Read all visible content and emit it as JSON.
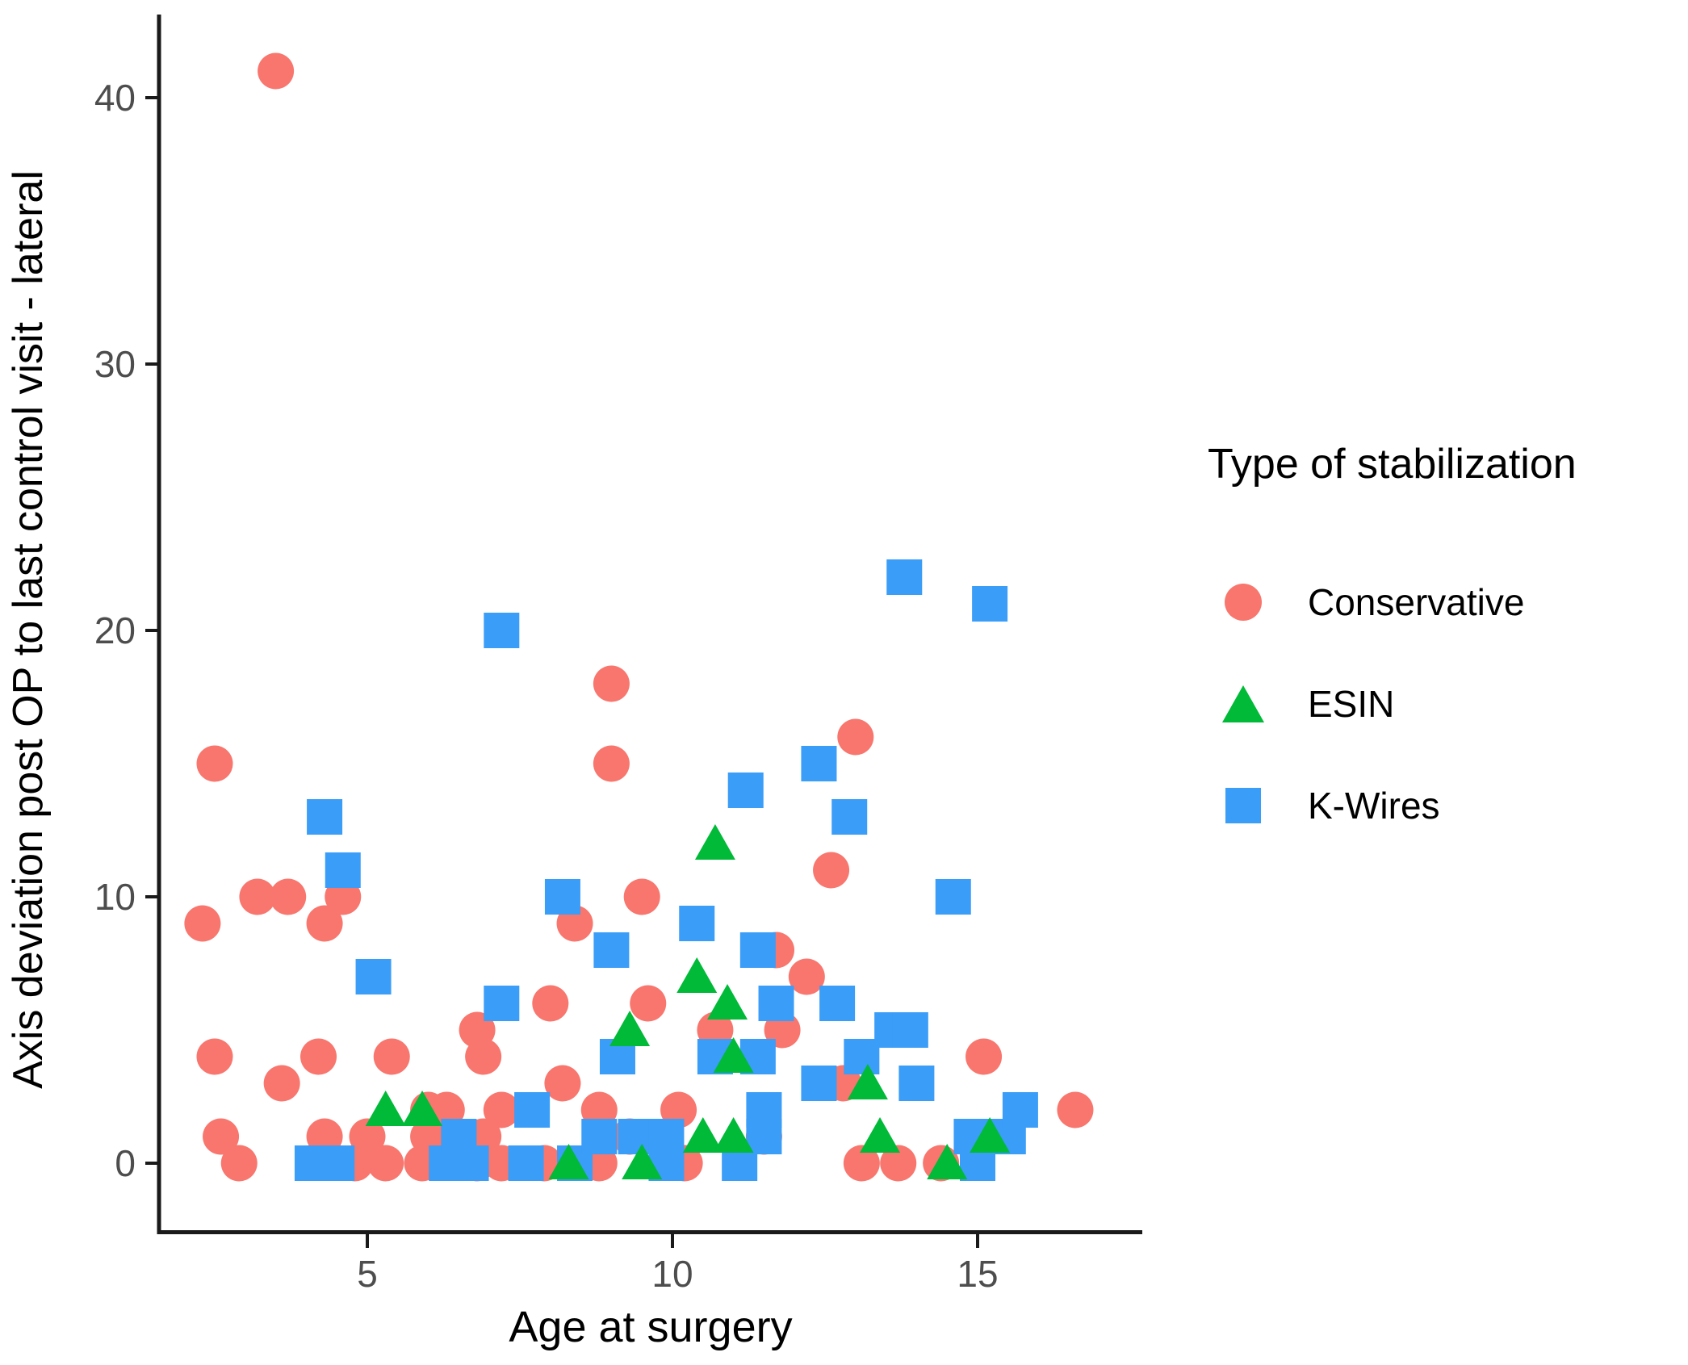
{
  "chart_data": {
    "type": "scatter",
    "title": "",
    "xlabel": "Age at surgery",
    "ylabel": "Axis deviation post OP to last control visit - lateral",
    "xlim": [
      1.8,
      17.6
    ],
    "ylim": [
      -2,
      43.5
    ],
    "x_ticks": [
      5,
      10,
      15
    ],
    "y_ticks": [
      0,
      10,
      20,
      30,
      40
    ],
    "grid": "off",
    "legend_title": "Type of stabilization",
    "legend_position": "right",
    "series": [
      {
        "name": "Conservative",
        "marker": "circle",
        "color": "#F8766D",
        "points": [
          [
            3.5,
            41
          ],
          [
            2.5,
            15
          ],
          [
            2.3,
            9
          ],
          [
            3.2,
            10
          ],
          [
            3.7,
            10
          ],
          [
            4.3,
            9
          ],
          [
            4.6,
            10
          ],
          [
            2.5,
            4
          ],
          [
            4.2,
            4
          ],
          [
            5.4,
            4
          ],
          [
            3.6,
            3
          ],
          [
            2.6,
            1
          ],
          [
            2.9,
            0
          ],
          [
            4.3,
            1
          ],
          [
            5.0,
            1
          ],
          [
            4.8,
            0
          ],
          [
            5.3,
            0
          ],
          [
            5.9,
            0
          ],
          [
            6.0,
            1
          ],
          [
            6.0,
            2
          ],
          [
            6.3,
            2
          ],
          [
            6.8,
            5
          ],
          [
            6.9,
            4
          ],
          [
            6.9,
            1
          ],
          [
            6.8,
            0
          ],
          [
            7.2,
            0
          ],
          [
            7.2,
            2
          ],
          [
            7.9,
            0
          ],
          [
            8.2,
            3
          ],
          [
            8.8,
            2
          ],
          [
            8.8,
            0
          ],
          [
            8.0,
            6
          ],
          [
            8.4,
            9
          ],
          [
            9.0,
            18
          ],
          [
            9.0,
            15
          ],
          [
            9.5,
            10
          ],
          [
            9.3,
            1
          ],
          [
            9.6,
            6
          ],
          [
            10.1,
            2
          ],
          [
            10.2,
            0
          ],
          [
            10.7,
            5
          ],
          [
            11.7,
            8
          ],
          [
            11.8,
            5
          ],
          [
            11.5,
            1
          ],
          [
            12.2,
            7
          ],
          [
            12.6,
            11
          ],
          [
            12.8,
            3
          ],
          [
            13.0,
            16
          ],
          [
            13.1,
            0
          ],
          [
            13.7,
            0
          ],
          [
            14.4,
            0
          ],
          [
            15.1,
            4
          ],
          [
            16.6,
            2
          ]
        ]
      },
      {
        "name": "ESIN",
        "marker": "triangle",
        "color": "#00BA38",
        "points": [
          [
            5.3,
            2
          ],
          [
            5.9,
            2
          ],
          [
            8.3,
            0
          ],
          [
            9.3,
            5
          ],
          [
            9.5,
            0
          ],
          [
            10.4,
            7
          ],
          [
            10.7,
            12
          ],
          [
            10.5,
            1
          ],
          [
            10.9,
            6
          ],
          [
            11.0,
            4
          ],
          [
            11.0,
            1
          ],
          [
            13.2,
            3
          ],
          [
            13.4,
            1
          ],
          [
            14.5,
            0
          ],
          [
            15.2,
            1
          ]
        ]
      },
      {
        "name": "K-Wires",
        "marker": "square",
        "color": "#3A9DF8",
        "points": [
          [
            4.1,
            0
          ],
          [
            4.5,
            0
          ],
          [
            4.3,
            13
          ],
          [
            4.6,
            11
          ],
          [
            5.1,
            7
          ],
          [
            6.3,
            0
          ],
          [
            6.5,
            1
          ],
          [
            6.7,
            0
          ],
          [
            7.2,
            20
          ],
          [
            7.2,
            6
          ],
          [
            7.6,
            0
          ],
          [
            7.7,
            2
          ],
          [
            8.2,
            10
          ],
          [
            8.4,
            0
          ],
          [
            8.8,
            1
          ],
          [
            9.0,
            8
          ],
          [
            9.1,
            4
          ],
          [
            9.4,
            1
          ],
          [
            9.9,
            1
          ],
          [
            9.9,
            0
          ],
          [
            10.4,
            9
          ],
          [
            10.7,
            4
          ],
          [
            11.1,
            0
          ],
          [
            11.2,
            14
          ],
          [
            11.4,
            8
          ],
          [
            11.4,
            4
          ],
          [
            11.5,
            2
          ],
          [
            11.5,
            1
          ],
          [
            11.7,
            6
          ],
          [
            12.4,
            15
          ],
          [
            12.4,
            3
          ],
          [
            12.7,
            6
          ],
          [
            12.9,
            13
          ],
          [
            13.1,
            4
          ],
          [
            13.6,
            5
          ],
          [
            13.8,
            22
          ],
          [
            13.9,
            5
          ],
          [
            14.0,
            3
          ],
          [
            14.6,
            10
          ],
          [
            14.9,
            1
          ],
          [
            15.0,
            0
          ],
          [
            15.2,
            21
          ],
          [
            15.5,
            1
          ],
          [
            15.7,
            2
          ]
        ]
      }
    ],
    "axis_color_hex": "#1a1a1a",
    "tick_label_color_hex": "#4d4d4d"
  }
}
